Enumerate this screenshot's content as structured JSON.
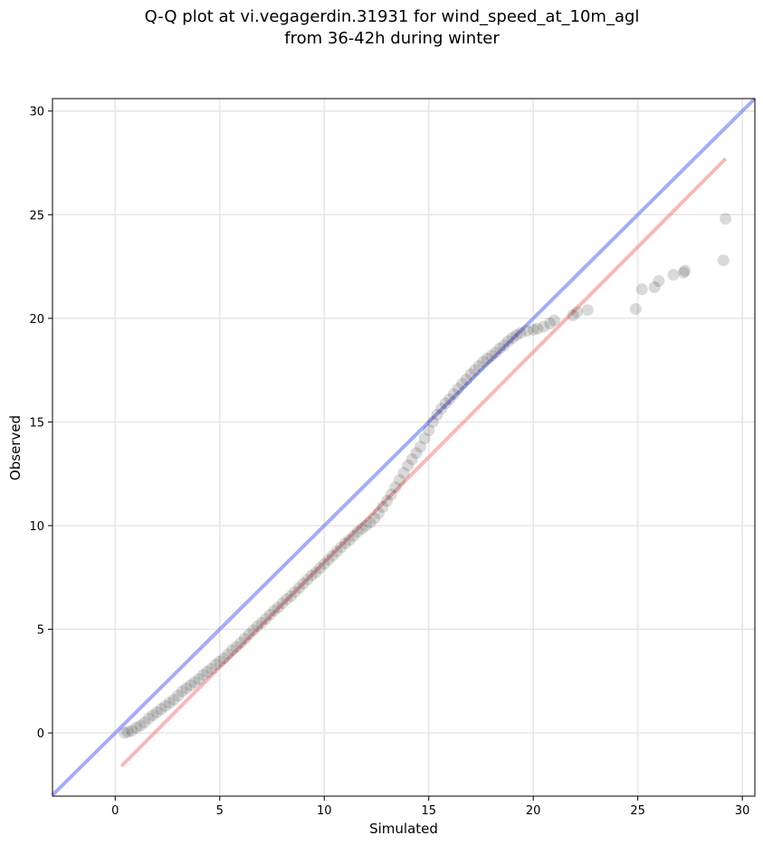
{
  "chart_data": {
    "type": "scatter",
    "title_lines": [
      "Q-Q plot at vi.vegagerdin.31931 for wind_speed_at_10m_agl",
      "from 36-42h during winter"
    ],
    "xlabel": "Simulated",
    "ylabel": "Observed",
    "xlim": [
      -3,
      30.6
    ],
    "ylim": [
      -3.05,
      30.6
    ],
    "xticks": [
      0,
      5,
      10,
      15,
      20,
      25,
      30
    ],
    "yticks": [
      0,
      5,
      10,
      15,
      20,
      25,
      30
    ],
    "grid": true,
    "point_color": "#1a1a1a",
    "reference_lines": [
      {
        "kind": "identity",
        "color": "#6b74f0",
        "from": [
          -3,
          -3
        ],
        "to": [
          30.6,
          30.6
        ]
      },
      {
        "kind": "fit",
        "color": "#f08a8a",
        "from": [
          0.3,
          -1.6
        ],
        "to": [
          29.2,
          27.7
        ]
      }
    ],
    "series": [
      {
        "x": [
          0.45,
          0.6,
          0.8,
          1.0,
          1.2,
          1.4,
          1.6,
          1.8,
          2.0,
          2.2,
          2.4,
          2.6,
          2.8,
          3.0,
          3.2,
          3.4,
          3.6,
          3.8,
          4.0,
          4.2,
          4.4,
          4.6,
          4.8,
          5.0,
          5.2,
          5.4,
          5.6,
          5.8,
          6.0,
          6.2,
          6.4,
          6.6,
          6.8,
          7.0,
          7.2,
          7.4,
          7.6,
          7.8,
          8.0,
          8.2,
          8.4,
          8.6,
          8.8,
          9.0,
          9.2,
          9.4,
          9.6,
          9.8,
          10.0,
          10.2,
          10.4,
          10.6,
          10.8,
          11.0,
          11.2,
          11.4,
          11.6,
          11.8,
          12.0,
          12.2,
          12.4,
          12.6,
          12.8,
          13.0,
          13.2,
          13.4,
          13.6,
          13.8,
          14.0,
          14.2,
          14.4,
          14.6,
          14.8,
          15.0,
          15.2,
          15.4,
          15.6,
          15.8,
          16.0,
          16.2,
          16.4,
          16.6,
          16.8,
          17.0,
          17.2,
          17.4,
          17.6,
          17.8,
          18.0,
          18.2,
          18.4,
          18.6,
          18.8,
          19.0,
          19.2,
          19.4,
          19.7,
          20.0,
          20.2,
          20.5,
          20.8,
          21.0,
          21.9,
          22.1,
          22.6,
          24.9,
          25.2,
          25.8,
          26.0,
          26.7,
          27.2,
          27.25,
          29.1,
          29.2
        ],
        "y": [
          0.0,
          0.05,
          0.1,
          0.25,
          0.35,
          0.5,
          0.7,
          0.85,
          1.0,
          1.15,
          1.3,
          1.45,
          1.6,
          1.8,
          2.0,
          2.15,
          2.3,
          2.45,
          2.6,
          2.8,
          2.95,
          3.1,
          3.3,
          3.45,
          3.6,
          3.8,
          4.0,
          4.15,
          4.35,
          4.55,
          4.75,
          4.95,
          5.15,
          5.3,
          5.5,
          5.7,
          5.9,
          6.05,
          6.25,
          6.45,
          6.6,
          6.8,
          7.0,
          7.2,
          7.4,
          7.6,
          7.75,
          7.95,
          8.15,
          8.35,
          8.55,
          8.75,
          8.95,
          9.15,
          9.3,
          9.5,
          9.7,
          9.85,
          10.0,
          10.15,
          10.35,
          10.6,
          10.9,
          11.2,
          11.5,
          11.85,
          12.2,
          12.55,
          12.9,
          13.2,
          13.5,
          13.8,
          14.2,
          14.6,
          15.0,
          15.35,
          15.65,
          15.9,
          16.1,
          16.35,
          16.6,
          16.85,
          17.05,
          17.3,
          17.5,
          17.7,
          17.9,
          18.05,
          18.2,
          18.35,
          18.55,
          18.7,
          18.9,
          19.05,
          19.2,
          19.3,
          19.4,
          19.45,
          19.5,
          19.6,
          19.75,
          19.9,
          20.15,
          20.3,
          20.4,
          20.45,
          21.4,
          21.5,
          21.8,
          22.1,
          22.2,
          22.3,
          22.8,
          24.8
        ]
      }
    ]
  }
}
